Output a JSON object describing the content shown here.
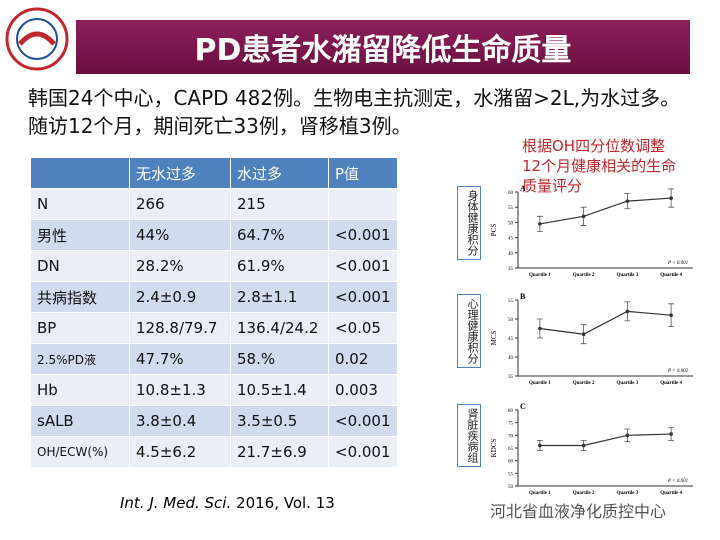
{
  "header": {
    "title": "PD患者水潴留降低生命质量"
  },
  "intro": "韩国24个中心，CAPD 482例。生物电主抗测定，水潴留>2L,为水过多。随访12个月，期间死亡33例，肾移植3例。",
  "table": {
    "columns": [
      "无水过多",
      "水过多",
      "P值"
    ],
    "rows": [
      [
        "N",
        "266",
        "215"
      ],
      [
        "男性",
        "44%",
        "64.7%",
        "<0.001"
      ],
      [
        "DN",
        "28.2%",
        "61.9%",
        "<0.001"
      ],
      [
        "共病指数",
        "2.4±0.9",
        "2.8±1.1",
        "<0.001"
      ],
      [
        "BP",
        "128.8/79.7",
        "136.4/24.2",
        "<0.05"
      ],
      [
        "2.5%PD液",
        "47.7%",
        "58.%",
        "0.02"
      ],
      [
        "Hb",
        "10.8±1.3",
        "10.5±1.4",
        "0.003"
      ],
      [
        "sALB",
        "3.8±0.4",
        "3.5±0.5",
        "<0.001"
      ],
      [
        "OH/ECW(%)",
        "4.5±6.2",
        "21.7±6.9",
        "<0.001"
      ]
    ]
  },
  "citation": {
    "journal": "Int. J. Med. Sci.",
    "rest": "2016, Vol. 13"
  },
  "annotation": "根据OH四分位数调整12个月健康相关的生命质量评分",
  "chart_data": [
    {
      "type": "line",
      "panel": "A",
      "side_label": "身体健康积分",
      "ylabel": "PCS",
      "p_text": "P < 0.001",
      "categories": [
        "Quartile 1",
        "Quartile 2",
        "Quartile 3",
        "Quartile 4"
      ],
      "values": [
        49.5,
        52,
        57,
        58
      ],
      "errors": [
        2.5,
        3,
        2.5,
        3
      ],
      "color": "#333333",
      "ylim": [
        35,
        60
      ],
      "yticks": [
        35,
        40,
        45,
        50,
        55,
        60
      ]
    },
    {
      "type": "line",
      "panel": "B",
      "side_label": "心理健康积分",
      "ylabel": "MCS",
      "p_text": "P = 0.002",
      "categories": [
        "Quartile 1",
        "Quartile 2",
        "Quartile 3",
        "Quartile 4"
      ],
      "values": [
        47.5,
        46,
        52,
        51
      ],
      "errors": [
        2.5,
        2.5,
        2.5,
        3
      ],
      "color": "#333333",
      "ylim": [
        35,
        55
      ],
      "yticks": [
        35,
        40,
        45,
        50,
        55
      ]
    },
    {
      "type": "line",
      "panel": "C",
      "side_label": "肾脏疾病组",
      "ylabel": "KDCS",
      "p_text": "P < 0.001",
      "categories": [
        "Quartile 1",
        "Quartile 2",
        "Quartile 3",
        "Quartile 4"
      ],
      "values": [
        66,
        66,
        70,
        70.5
      ],
      "errors": [
        2,
        2,
        2.5,
        2.5
      ],
      "color": "#333333",
      "ylim": [
        50,
        80
      ],
      "yticks": [
        50,
        55,
        60,
        65,
        70,
        75,
        80
      ]
    }
  ],
  "watermark": "河北省血液净化质控中心"
}
